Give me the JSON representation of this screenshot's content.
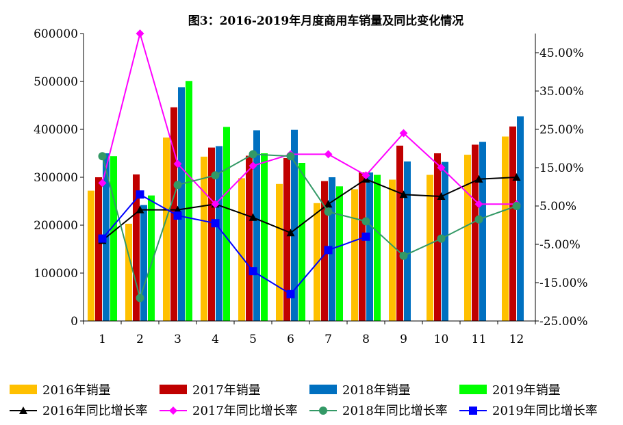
{
  "chart_data": {
    "type": "bar",
    "title": "图3：2016-2019年月度商用车销量及同比变化情况",
    "categories": [
      "1",
      "2",
      "3",
      "4",
      "5",
      "6",
      "7",
      "8",
      "9",
      "10",
      "11",
      "12"
    ],
    "y_left_ticks": [
      "0",
      "100000",
      "200000",
      "300000",
      "400000",
      "500000",
      "600000"
    ],
    "y_right_ticks": [
      "-25.00%",
      "-15.00%",
      "-5.00%",
      "5.00%",
      "15.00%",
      "25.00%",
      "35.00%",
      "45.00%"
    ],
    "ylim_left": [
      0,
      600000
    ],
    "ylim_right": [
      -25,
      50
    ],
    "bar_series": [
      {
        "name": "2016年销量",
        "color": "#FFC000",
        "values": [
          272000,
          203000,
          383000,
          343000,
          298000,
          286000,
          246000,
          275000,
          295000,
          305000,
          347000,
          385000
        ]
      },
      {
        "name": "2017年销量",
        "color": "#C00000",
        "values": [
          300000,
          306000,
          446000,
          362000,
          345000,
          340000,
          292000,
          310000,
          366000,
          350000,
          368000,
          406000
        ]
      },
      {
        "name": "2018年销量",
        "color": "#0070C0",
        "values": [
          350000,
          242000,
          488000,
          365000,
          398000,
          399000,
          300000,
          310000,
          333000,
          332000,
          374000,
          427000
        ]
      },
      {
        "name": "2019年销量",
        "color": "#00FF00",
        "values": [
          344000,
          262000,
          501000,
          405000,
          350000,
          330000,
          281000,
          305000,
          null,
          null,
          null,
          null
        ]
      }
    ],
    "line_series": [
      {
        "name": "2016年同比增长率",
        "color": "#000000",
        "marker": "triangle",
        "values": [
          -4.0,
          4.0,
          4.0,
          5.5,
          2.0,
          -2.0,
          5.5,
          12.0,
          8.0,
          7.5,
          12.0,
          12.5
        ]
      },
      {
        "name": "2017年同比增长率",
        "color": "#FF00FF",
        "marker": "diamond",
        "values": [
          11.0,
          50.0,
          16.0,
          5.5,
          15.5,
          18.5,
          18.5,
          13.0,
          24.0,
          15.0,
          5.5,
          5.5
        ]
      },
      {
        "name": "2018年同比增长率",
        "color": "#339966",
        "marker": "circle",
        "values": [
          18.0,
          -19.0,
          10.5,
          13.0,
          18.5,
          18.0,
          3.5,
          1.0,
          -8.0,
          -3.5,
          1.5,
          5.0
        ]
      },
      {
        "name": "2019年同比增长率",
        "color": "#0000FF",
        "marker": "square",
        "values": [
          -3.5,
          8.0,
          2.5,
          0.5,
          -12.0,
          -18.0,
          -6.5,
          -3.0,
          null,
          null,
          null,
          null
        ]
      }
    ]
  }
}
